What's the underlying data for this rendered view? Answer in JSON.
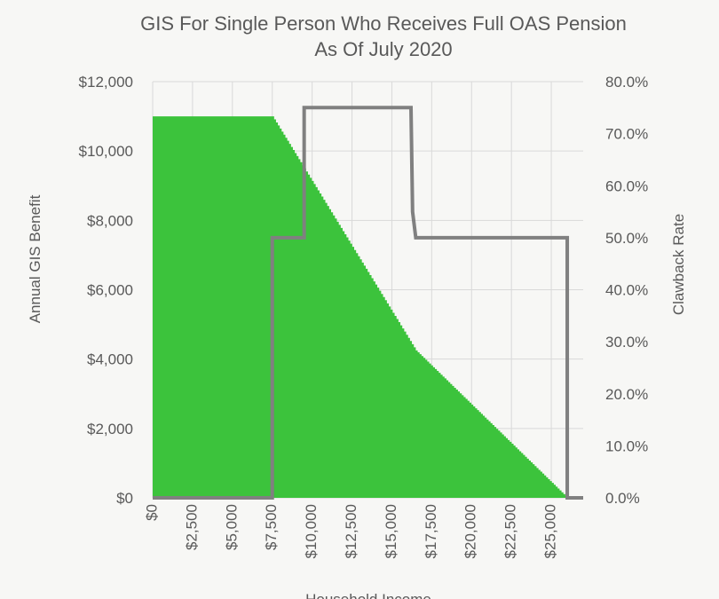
{
  "chart_data": {
    "type": "area",
    "title_lines": [
      "GIS For Single Person Who Receives Full OAS Pension",
      "As Of July 2020"
    ],
    "xlabel": "Household Income",
    "ylabel": "Annual GIS Benefit",
    "y2label": "Clawback Rate",
    "xlim": [
      0,
      27000
    ],
    "ylim": [
      0,
      12000
    ],
    "y2lim": [
      0,
      0.8
    ],
    "grid": "vertical-and-horizontal",
    "x_ticks": [
      {
        "value": 0,
        "label": "$0"
      },
      {
        "value": 2500,
        "label": "$2,500"
      },
      {
        "value": 5000,
        "label": "$5,000"
      },
      {
        "value": 7500,
        "label": "$7,500"
      },
      {
        "value": 10000,
        "label": "$10,000"
      },
      {
        "value": 12500,
        "label": "$12,500"
      },
      {
        "value": 15000,
        "label": "$15,000"
      },
      {
        "value": 17500,
        "label": "$17,500"
      },
      {
        "value": 20000,
        "label": "$20,000"
      },
      {
        "value": 22500,
        "label": "$22,500"
      },
      {
        "value": 25000,
        "label": "$25,000"
      }
    ],
    "y_ticks": [
      {
        "value": 0,
        "label": "$0"
      },
      {
        "value": 2000,
        "label": "$2,000"
      },
      {
        "value": 4000,
        "label": "$4,000"
      },
      {
        "value": 6000,
        "label": "$6,000"
      },
      {
        "value": 8000,
        "label": "$8,000"
      },
      {
        "value": 10000,
        "label": "$10,000"
      },
      {
        "value": 12000,
        "label": "$12,000"
      }
    ],
    "y2_ticks": [
      {
        "value": 0,
        "label": "0.0%"
      },
      {
        "value": 0.1,
        "label": "10.0%"
      },
      {
        "value": 0.2,
        "label": "20.0%"
      },
      {
        "value": 0.3,
        "label": "30.0%"
      },
      {
        "value": 0.4,
        "label": "40.0%"
      },
      {
        "value": 0.5,
        "label": "50.0%"
      },
      {
        "value": 0.6,
        "label": "60.0%"
      },
      {
        "value": 0.7,
        "label": "70.0%"
      },
      {
        "value": 0.8,
        "label": "80.0%"
      }
    ],
    "series": [
      {
        "axis": "left",
        "kind": "area",
        "color": "#3cc33c",
        "x": [
          0,
          7500,
          9500,
          16500,
          26000
        ],
        "y": [
          11000,
          11000,
          9500,
          4250,
          0
        ]
      },
      {
        "axis": "right",
        "kind": "step-line",
        "color": "#808080",
        "x": [
          0,
          7500,
          7500,
          9500,
          9500,
          16200,
          16300,
          16500,
          26000,
          26000,
          27000
        ],
        "y": [
          0,
          0,
          0.5,
          0.5,
          0.75,
          0.75,
          0.55,
          0.5,
          0.5,
          0,
          0
        ]
      }
    ]
  }
}
